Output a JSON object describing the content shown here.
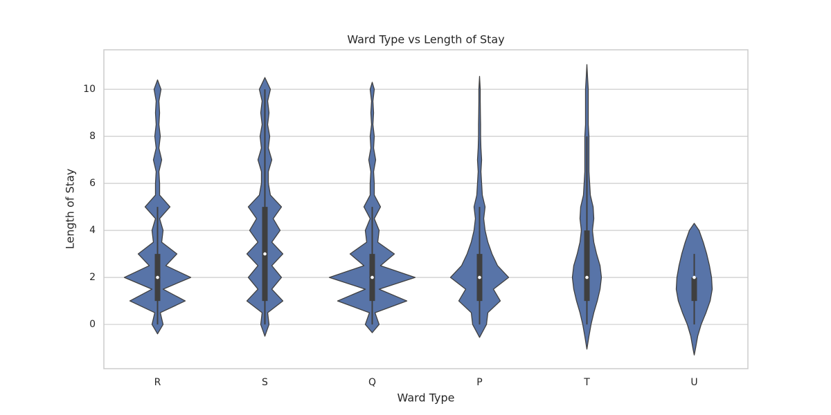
{
  "chart_data": {
    "type": "violin",
    "title": "Ward Type vs Length of Stay",
    "x_label": "Ward Type",
    "y_label": "Length of Stay",
    "color": "#5874a8",
    "grid": true,
    "ylim": [
      -1.88,
      11.68
    ],
    "yticks": [
      0,
      2,
      4,
      6,
      8,
      10
    ],
    "categories": [
      "R",
      "S",
      "Q",
      "P",
      "T",
      "U"
    ],
    "violins": [
      {
        "kde_y": [
          -0.4,
          0,
          0.5,
          1,
          1.5,
          2,
          2.5,
          3,
          3.5,
          4,
          4.5,
          5,
          5.5,
          6,
          6.5,
          7,
          7.5,
          8,
          8.5,
          9,
          9.5,
          10,
          10.4
        ],
        "density": [
          0,
          8,
          4,
          40,
          8,
          48,
          12,
          28,
          6,
          8,
          3,
          18,
          3,
          3,
          2,
          6,
          2,
          4,
          2,
          3,
          2,
          5,
          0
        ],
        "whisker_low": 0,
        "q1": 1,
        "median": 2,
        "q3": 3,
        "whisker_high": 5
      },
      {
        "kde_y": [
          -0.5,
          0,
          0.5,
          1,
          1.5,
          2,
          2.5,
          3,
          3.5,
          4,
          4.5,
          5,
          5.5,
          6,
          6.5,
          7,
          7.5,
          8,
          8.5,
          9,
          9.5,
          10,
          10.5
        ],
        "density": [
          0,
          6,
          4,
          26,
          10,
          24,
          10,
          26,
          10,
          22,
          12,
          24,
          8,
          5,
          5,
          10,
          5,
          7,
          4,
          6,
          4,
          8,
          0
        ],
        "whisker_low": 0,
        "q1": 1,
        "median": 3,
        "q3": 5,
        "whisker_high": 10
      },
      {
        "kde_y": [
          -0.35,
          0,
          0.5,
          1,
          1.5,
          2,
          2.5,
          3,
          3.5,
          4,
          4.5,
          5,
          5.5,
          6,
          6.5,
          7,
          7.5,
          8,
          8.5,
          9,
          9.5,
          10,
          10.3
        ],
        "density": [
          0,
          10,
          4,
          50,
          10,
          62,
          12,
          32,
          8,
          10,
          3,
          12,
          3,
          3,
          2,
          5,
          2,
          3,
          1,
          2,
          1,
          3,
          0
        ],
        "whisker_low": 0,
        "q1": 1,
        "median": 2,
        "q3": 3,
        "whisker_high": 5
      },
      {
        "kde_y": [
          -0.55,
          0,
          0.5,
          1,
          1.5,
          2,
          2.5,
          3,
          3.5,
          4,
          4.5,
          5,
          5.5,
          6,
          6.5,
          7,
          7.5,
          8,
          8.5,
          9,
          9.5,
          10,
          10.55
        ],
        "density": [
          0,
          10,
          12,
          30,
          20,
          42,
          26,
          18,
          12,
          8,
          6,
          8,
          4,
          3,
          2,
          3,
          2,
          1.5,
          1.5,
          1.2,
          1,
          1,
          0
        ],
        "whisker_low": 0,
        "q1": 1,
        "median": 2,
        "q3": 3,
        "whisker_high": 5
      },
      {
        "kde_y": [
          -1.05,
          -0.5,
          0,
          0.5,
          1,
          1.5,
          2,
          2.5,
          3,
          3.5,
          4,
          4.5,
          5,
          5.5,
          6,
          6.5,
          7,
          7.5,
          8,
          8.5,
          9,
          9.5,
          10,
          10.5,
          11.05
        ],
        "density": [
          0,
          3,
          6,
          10,
          15,
          19,
          21,
          19,
          14,
          10,
          8,
          10,
          9,
          5,
          4,
          3,
          3,
          3,
          3,
          2,
          2,
          2,
          2,
          1,
          0
        ],
        "whisker_low": 0,
        "q1": 1,
        "median": 2,
        "q3": 4,
        "whisker_high": 8
      },
      {
        "kde_y": [
          -1.3,
          -1,
          -0.5,
          0,
          0.5,
          1,
          1.5,
          2,
          2.5,
          3,
          3.5,
          4,
          4.3
        ],
        "density": [
          0,
          2,
          5,
          10,
          17,
          23,
          26,
          25,
          22,
          18,
          13,
          7,
          0
        ],
        "whisker_low": 0,
        "q1": 1,
        "median": 2,
        "q3": 2,
        "whisker_high": 3
      }
    ]
  }
}
